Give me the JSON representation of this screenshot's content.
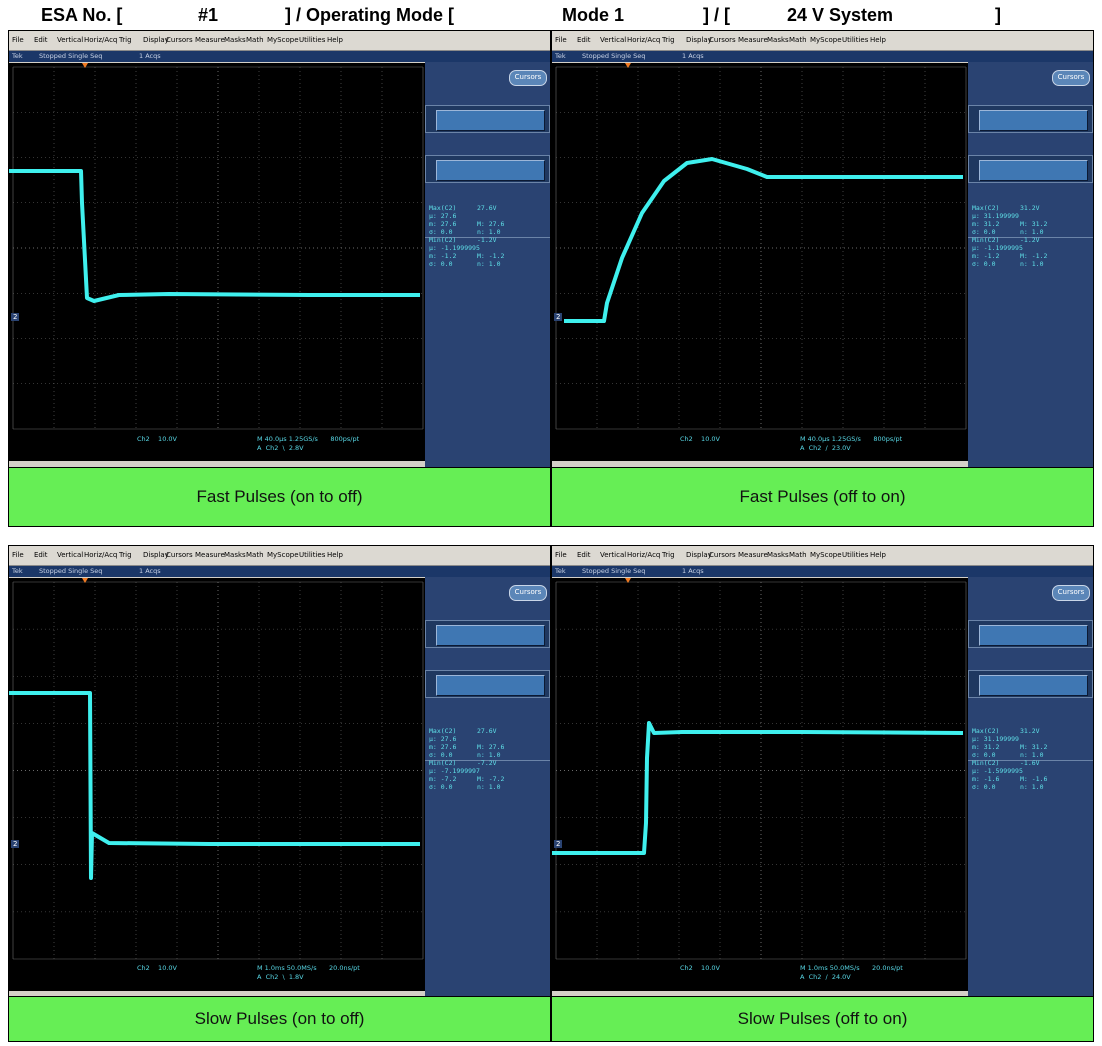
{
  "header": {
    "esa_label": "ESA No. [",
    "esa_value": "#1",
    "mode_label": "] / Operating Mode [",
    "mode_value": "Mode 1",
    "system_sep": "] / [",
    "system_value": "24 V System",
    "end_bracket": "]"
  },
  "scope_ui": {
    "menu": [
      "File",
      "Edit",
      "Vertical",
      "Horiz/Acq",
      "Trig",
      "Display",
      "Cursors",
      "Measure",
      "Masks",
      "Math",
      "MyScope",
      "Utilities",
      "Help"
    ],
    "status_tek": "Tek",
    "status_mode": "Stopped  Single Seq",
    "status_acqs": "1 Acqs",
    "cursors_button": "Cursors",
    "ch_marker": "2"
  },
  "panels": [
    {
      "caption": "Fast Pulses (on to off)",
      "meas": [
        [
          "Max(C2)",
          "27.6V"
        ],
        [
          "μ: 27.6",
          ""
        ],
        [
          "m: 27.6",
          "M: 27.6"
        ],
        [
          "σ: 0.0",
          "n: 1.0"
        ],
        [
          "Min(C2)",
          "-1.2V"
        ],
        [
          "μ: -1.1999995",
          ""
        ],
        [
          "m: -1.2",
          "M: -1.2"
        ],
        [
          "σ: 0.0",
          "n: 1.0"
        ]
      ],
      "scale": "Ch2    10.0V",
      "timebase": "M 40.0μs 1.25GS/s      800ps/pt",
      "trigger": "A  Ch2  \\  2.8V"
    },
    {
      "caption": "Fast Pulses (off to on)",
      "meas": [
        [
          "Max(C2)",
          "31.2V"
        ],
        [
          "μ: 31.199999",
          ""
        ],
        [
          "m: 31.2",
          "M: 31.2"
        ],
        [
          "σ: 0.0",
          "n: 1.0"
        ],
        [
          "Min(C2)",
          "-1.2V"
        ],
        [
          "μ: -1.1999995",
          ""
        ],
        [
          "m: -1.2",
          "M: -1.2"
        ],
        [
          "σ: 0.0",
          "n: 1.0"
        ]
      ],
      "scale": "Ch2    10.0V",
      "timebase": "M 40.0μs 1.25GS/s      800ps/pt",
      "trigger": "A  Ch2  /  23.0V"
    },
    {
      "caption": "Slow Pulses (on to off)",
      "meas": [
        [
          "Max(C2)",
          "27.6V"
        ],
        [
          "μ: 27.6",
          ""
        ],
        [
          "m: 27.6",
          "M: 27.6"
        ],
        [
          "σ: 0.0",
          "n: 1.0"
        ],
        [
          "Min(C2)",
          "-7.2V"
        ],
        [
          "μ: -7.1999997",
          ""
        ],
        [
          "m: -7.2",
          "M: -7.2"
        ],
        [
          "σ: 0.0",
          "n: 1.0"
        ]
      ],
      "scale": "Ch2    10.0V",
      "timebase": "M 1.0ms 50.0MS/s      20.0ns/pt",
      "trigger": "A  Ch2  \\  1.8V"
    },
    {
      "caption": "Slow Pulses (off to on)",
      "meas": [
        [
          "Max(C2)",
          "31.2V"
        ],
        [
          "μ: 31.199999",
          ""
        ],
        [
          "m: 31.2",
          "M: 31.2"
        ],
        [
          "σ: 0.0",
          "n: 1.0"
        ],
        [
          "Min(C2)",
          "-1.6V"
        ],
        [
          "μ: -1.5999995",
          ""
        ],
        [
          "m: -1.6",
          "M: -1.6"
        ],
        [
          "σ: 0.0",
          "n: 1.0"
        ]
      ],
      "scale": "Ch2    10.0V",
      "timebase": "M 1.0ms 50.0MS/s      20.0ns/pt",
      "trigger": "A  Ch2  /  24.0V"
    }
  ],
  "colors": {
    "trace": "#3ff0ee",
    "caption_bg": "#66ee55",
    "grid": "#6a6a6a"
  }
}
